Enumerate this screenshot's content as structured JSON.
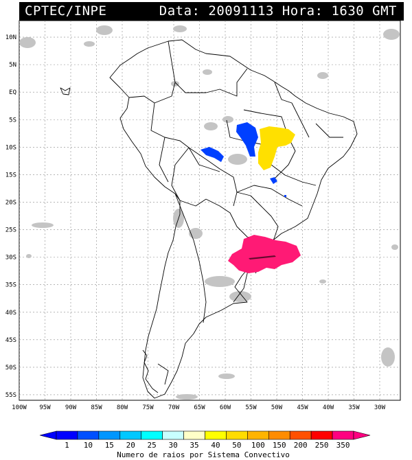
{
  "header": {
    "source": "CPTEC/INPE",
    "datetime": "Data: 20091113 Hora: 1630 GMT"
  },
  "map": {
    "lat_range": [
      -56,
      13
    ],
    "lon_range": [
      -100,
      -26
    ],
    "lat_ticks": [
      "10N",
      "5N",
      "EQ",
      "5S",
      "10S",
      "15S",
      "20S",
      "25S",
      "30S",
      "35S",
      "40S",
      "45S",
      "50S",
      "55S"
    ],
    "lat_values": [
      10,
      5,
      0,
      -5,
      -10,
      -15,
      -20,
      -25,
      -30,
      -35,
      -40,
      -45,
      -50,
      -55
    ],
    "lon_ticks": [
      "100W",
      "95W",
      "90W",
      "85W",
      "80W",
      "75W",
      "70W",
      "65W",
      "60W",
      "55W",
      "50W",
      "45W",
      "40W",
      "35W",
      "30W"
    ],
    "lon_values": [
      -100,
      -95,
      -90,
      -85,
      -80,
      -75,
      -70,
      -65,
      -60,
      -55,
      -50,
      -45,
      -40,
      -35,
      -30
    ],
    "grid": true
  },
  "colorbar": {
    "title": "Numero de raios por Sistema Convectivo",
    "labels": [
      "1",
      "10",
      "15",
      "20",
      "25",
      "30",
      "35",
      "40",
      "50",
      "100",
      "150",
      "200",
      "250",
      "350"
    ],
    "colors": [
      "#0000ff",
      "#0050ff",
      "#0096ff",
      "#00c8ff",
      "#00ffff",
      "#c8ffff",
      "#ffffc8",
      "#ffff00",
      "#ffdc00",
      "#ffb400",
      "#ff8c00",
      "#ff5000",
      "#ff0000",
      "#ff0080"
    ]
  },
  "systems": [
    {
      "name": "blue-system-amazon-north",
      "color": "#0040ff",
      "lon": -54.5,
      "lat": -8.5
    },
    {
      "name": "blue-system-rondonia",
      "color": "#0040ff",
      "lon": -62,
      "lat": -11.5
    },
    {
      "name": "blue-system-goias",
      "color": "#0040ff",
      "lon": -51,
      "lat": -16
    },
    {
      "name": "yellow-system-central",
      "color": "#ffe000",
      "lon": -51,
      "lat": -10
    },
    {
      "name": "magenta-system-south",
      "color": "#ff1a75",
      "lon": -54,
      "lat": -29.5
    }
  ]
}
